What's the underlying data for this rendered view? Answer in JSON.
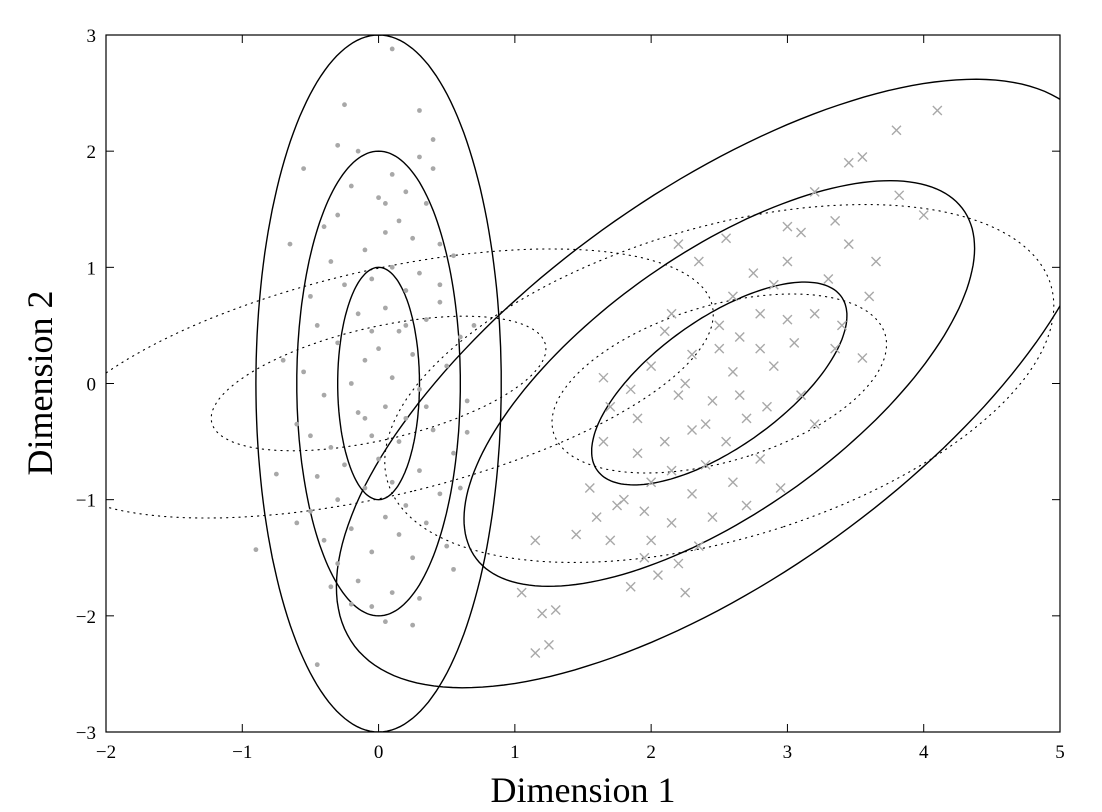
{
  "chart_data": {
    "type": "scatter",
    "title": "",
    "xlabel": "Dimension 1",
    "ylabel": "Dimension 2",
    "xlim": [
      -2,
      5
    ],
    "ylim": [
      -3,
      3
    ],
    "xticks": [
      "−2",
      "−1",
      "0",
      "1",
      "2",
      "3",
      "4",
      "5"
    ],
    "yticks": [
      "−3",
      "−2",
      "−1",
      "0",
      "1",
      "2",
      "3"
    ],
    "xtick_values": [
      -2,
      -1,
      0,
      1,
      2,
      3,
      4,
      5
    ],
    "ytick_values": [
      -3,
      -2,
      -1,
      0,
      1,
      2,
      3
    ],
    "grid": false,
    "legend": "none",
    "colors": {
      "points": "#a8a8a8",
      "contour": "#000000"
    },
    "series": [
      {
        "marker": "dot",
        "points": [
          [
            0.1,
            2.88
          ],
          [
            -0.25,
            2.4
          ],
          [
            -0.55,
            1.85
          ],
          [
            -0.3,
            2.05
          ],
          [
            -0.15,
            2.0
          ],
          [
            0.3,
            2.35
          ],
          [
            0.4,
            2.1
          ],
          [
            0.3,
            1.95
          ],
          [
            0.1,
            1.8
          ],
          [
            0.2,
            1.65
          ],
          [
            -0.2,
            1.7
          ],
          [
            0.0,
            1.6
          ],
          [
            0.35,
            1.55
          ],
          [
            -0.3,
            1.45
          ],
          [
            0.15,
            1.4
          ],
          [
            0.05,
            1.3
          ],
          [
            -0.4,
            1.35
          ],
          [
            0.25,
            1.25
          ],
          [
            0.45,
            1.2
          ],
          [
            -0.1,
            1.15
          ],
          [
            0.55,
            1.1
          ],
          [
            -0.35,
            1.05
          ],
          [
            0.1,
            1.0
          ],
          [
            0.3,
            0.95
          ],
          [
            -0.05,
            0.9
          ],
          [
            -0.25,
            0.85
          ],
          [
            0.2,
            0.8
          ],
          [
            -0.5,
            0.75
          ],
          [
            0.45,
            0.7
          ],
          [
            0.05,
            0.65
          ],
          [
            -0.15,
            0.6
          ],
          [
            0.35,
            0.55
          ],
          [
            -0.45,
            0.5
          ],
          [
            0.15,
            0.45
          ],
          [
            0.6,
            0.4
          ],
          [
            -0.3,
            0.35
          ],
          [
            0.0,
            0.3
          ],
          [
            0.25,
            0.25
          ],
          [
            -0.1,
            0.2
          ],
          [
            0.5,
            0.15
          ],
          [
            -0.55,
            0.1
          ],
          [
            0.1,
            0.05
          ],
          [
            -0.2,
            0.0
          ],
          [
            0.3,
            -0.05
          ],
          [
            -0.4,
            -0.1
          ],
          [
            0.65,
            -0.15
          ],
          [
            0.05,
            -0.2
          ],
          [
            -0.15,
            -0.25
          ],
          [
            0.2,
            -0.3
          ],
          [
            -0.6,
            -0.35
          ],
          [
            0.4,
            -0.4
          ],
          [
            -0.05,
            -0.45
          ],
          [
            0.15,
            -0.5
          ],
          [
            -0.35,
            -0.55
          ],
          [
            0.55,
            -0.6
          ],
          [
            0.0,
            -0.65
          ],
          [
            -0.25,
            -0.7
          ],
          [
            0.3,
            -0.75
          ],
          [
            -0.45,
            -0.8
          ],
          [
            0.1,
            -0.85
          ],
          [
            -0.1,
            -0.9
          ],
          [
            0.45,
            -0.95
          ],
          [
            -0.3,
            -1.0
          ],
          [
            0.2,
            -1.05
          ],
          [
            -0.5,
            -1.1
          ],
          [
            0.05,
            -1.15
          ],
          [
            0.35,
            -1.2
          ],
          [
            -0.2,
            -1.25
          ],
          [
            0.15,
            -1.3
          ],
          [
            -0.4,
            -1.35
          ],
          [
            0.5,
            -1.4
          ],
          [
            -0.05,
            -1.45
          ],
          [
            0.25,
            -1.5
          ],
          [
            -0.3,
            -1.55
          ],
          [
            0.55,
            -1.6
          ],
          [
            -0.15,
            -1.7
          ],
          [
            0.1,
            -1.8
          ],
          [
            -0.35,
            -1.75
          ],
          [
            0.3,
            -1.85
          ],
          [
            -0.05,
            -1.92
          ],
          [
            0.05,
            -2.05
          ],
          [
            0.25,
            -2.08
          ],
          [
            -0.9,
            -1.43
          ],
          [
            -0.75,
            -0.78
          ],
          [
            -0.5,
            -0.45
          ],
          [
            -0.7,
            0.2
          ],
          [
            0.7,
            0.5
          ],
          [
            0.65,
            -0.42
          ],
          [
            0.45,
            0.85
          ],
          [
            -0.65,
            1.2
          ],
          [
            0.4,
            1.85
          ],
          [
            -0.45,
            -2.42
          ],
          [
            -0.6,
            -1.2
          ],
          [
            0.6,
            -0.9
          ],
          [
            0.2,
            0.5
          ],
          [
            -0.1,
            -0.3
          ],
          [
            0.05,
            1.55
          ],
          [
            -0.2,
            -1.9
          ],
          [
            0.35,
            -0.2
          ],
          [
            -0.05,
            0.45
          ]
        ]
      },
      {
        "marker": "x",
        "points": [
          [
            4.1,
            2.35
          ],
          [
            3.8,
            2.18
          ],
          [
            3.55,
            1.95
          ],
          [
            3.82,
            1.62
          ],
          [
            4.0,
            1.45
          ],
          [
            3.2,
            1.65
          ],
          [
            3.35,
            1.4
          ],
          [
            3.1,
            1.3
          ],
          [
            3.45,
            1.2
          ],
          [
            3.65,
            1.05
          ],
          [
            3.6,
            0.75
          ],
          [
            3.3,
            0.9
          ],
          [
            3.0,
            1.05
          ],
          [
            2.9,
            0.85
          ],
          [
            3.2,
            0.6
          ],
          [
            3.4,
            0.5
          ],
          [
            3.55,
            0.22
          ],
          [
            3.35,
            0.3
          ],
          [
            3.05,
            0.35
          ],
          [
            2.8,
            0.6
          ],
          [
            2.65,
            0.4
          ],
          [
            2.5,
            0.3
          ],
          [
            2.3,
            0.25
          ],
          [
            2.1,
            0.45
          ],
          [
            2.6,
            0.1
          ],
          [
            2.9,
            0.15
          ],
          [
            3.1,
            -0.1
          ],
          [
            2.85,
            -0.2
          ],
          [
            3.2,
            -0.35
          ],
          [
            2.7,
            -0.3
          ],
          [
            2.45,
            -0.15
          ],
          [
            2.2,
            -0.1
          ],
          [
            2.0,
            0.15
          ],
          [
            1.85,
            -0.05
          ],
          [
            1.7,
            -0.2
          ],
          [
            2.3,
            -0.4
          ],
          [
            2.55,
            -0.5
          ],
          [
            2.8,
            -0.65
          ],
          [
            2.4,
            -0.7
          ],
          [
            2.1,
            -0.5
          ],
          [
            1.9,
            -0.6
          ],
          [
            2.0,
            -0.85
          ],
          [
            2.3,
            -0.95
          ],
          [
            2.6,
            -0.85
          ],
          [
            2.95,
            -0.9
          ],
          [
            2.7,
            -1.05
          ],
          [
            2.45,
            -1.15
          ],
          [
            2.15,
            -1.2
          ],
          [
            1.8,
            -1.0
          ],
          [
            1.6,
            -1.15
          ],
          [
            1.45,
            -1.3
          ],
          [
            1.7,
            -1.35
          ],
          [
            1.95,
            -1.5
          ],
          [
            2.2,
            -1.55
          ],
          [
            2.05,
            -1.65
          ],
          [
            1.85,
            -1.75
          ],
          [
            1.55,
            -0.9
          ],
          [
            1.65,
            -0.5
          ],
          [
            1.9,
            -0.3
          ],
          [
            2.0,
            -1.35
          ],
          [
            1.75,
            -1.05
          ],
          [
            1.15,
            -1.35
          ],
          [
            1.05,
            -1.8
          ],
          [
            1.3,
            -1.95
          ],
          [
            1.2,
            -1.98
          ],
          [
            1.25,
            -2.25
          ],
          [
            1.15,
            -2.32
          ],
          [
            2.5,
            0.5
          ],
          [
            2.75,
            0.95
          ],
          [
            2.35,
            1.05
          ],
          [
            2.55,
            1.25
          ],
          [
            2.2,
            1.2
          ],
          [
            3.0,
            1.35
          ],
          [
            2.25,
            0.0
          ],
          [
            2.65,
            -0.1
          ],
          [
            2.4,
            -0.35
          ],
          [
            2.15,
            -0.75
          ],
          [
            1.95,
            -1.1
          ],
          [
            2.8,
            0.3
          ],
          [
            3.0,
            0.55
          ],
          [
            1.65,
            0.05
          ],
          [
            2.35,
            -1.4
          ],
          [
            2.25,
            -1.8
          ],
          [
            3.45,
            1.9
          ],
          [
            2.6,
            0.75
          ],
          [
            2.15,
            0.6
          ]
        ]
      }
    ],
    "contours": [
      {
        "style": "solid",
        "center": [
          0,
          0
        ],
        "semi_axes": [
          0.3,
          1.0
        ],
        "angle_deg": 0
      },
      {
        "style": "solid",
        "center": [
          0,
          0
        ],
        "semi_axes": [
          0.6,
          2.0
        ],
        "angle_deg": 0
      },
      {
        "style": "solid",
        "center": [
          0,
          0
        ],
        "semi_axes": [
          0.9,
          3.0
        ],
        "angle_deg": 0
      },
      {
        "style": "dotted",
        "center": [
          0,
          0
        ],
        "semi_axes": [
          0.48,
          1.27
        ],
        "angle_deg": -74
      },
      {
        "style": "dotted",
        "center": [
          0,
          0
        ],
        "semi_axes": [
          0.96,
          2.54
        ],
        "angle_deg": -74
      },
      {
        "style": "solid",
        "center": [
          2.5,
          0
        ],
        "semi_axes": [
          0.52,
          1.17
        ],
        "angle_deg": -48
      },
      {
        "style": "solid",
        "center": [
          2.5,
          0
        ],
        "semi_axes": [
          1.04,
          2.34
        ],
        "angle_deg": -48
      },
      {
        "style": "solid",
        "center": [
          2.5,
          0
        ],
        "semi_axes": [
          1.56,
          3.51
        ],
        "angle_deg": -48
      },
      {
        "style": "dotted",
        "center": [
          2.5,
          0
        ],
        "semi_axes": [
          0.66,
          1.29
        ],
        "angle_deg": -69
      },
      {
        "style": "dotted",
        "center": [
          2.5,
          0
        ],
        "semi_axes": [
          1.32,
          2.58
        ],
        "angle_deg": -69
      }
    ]
  }
}
